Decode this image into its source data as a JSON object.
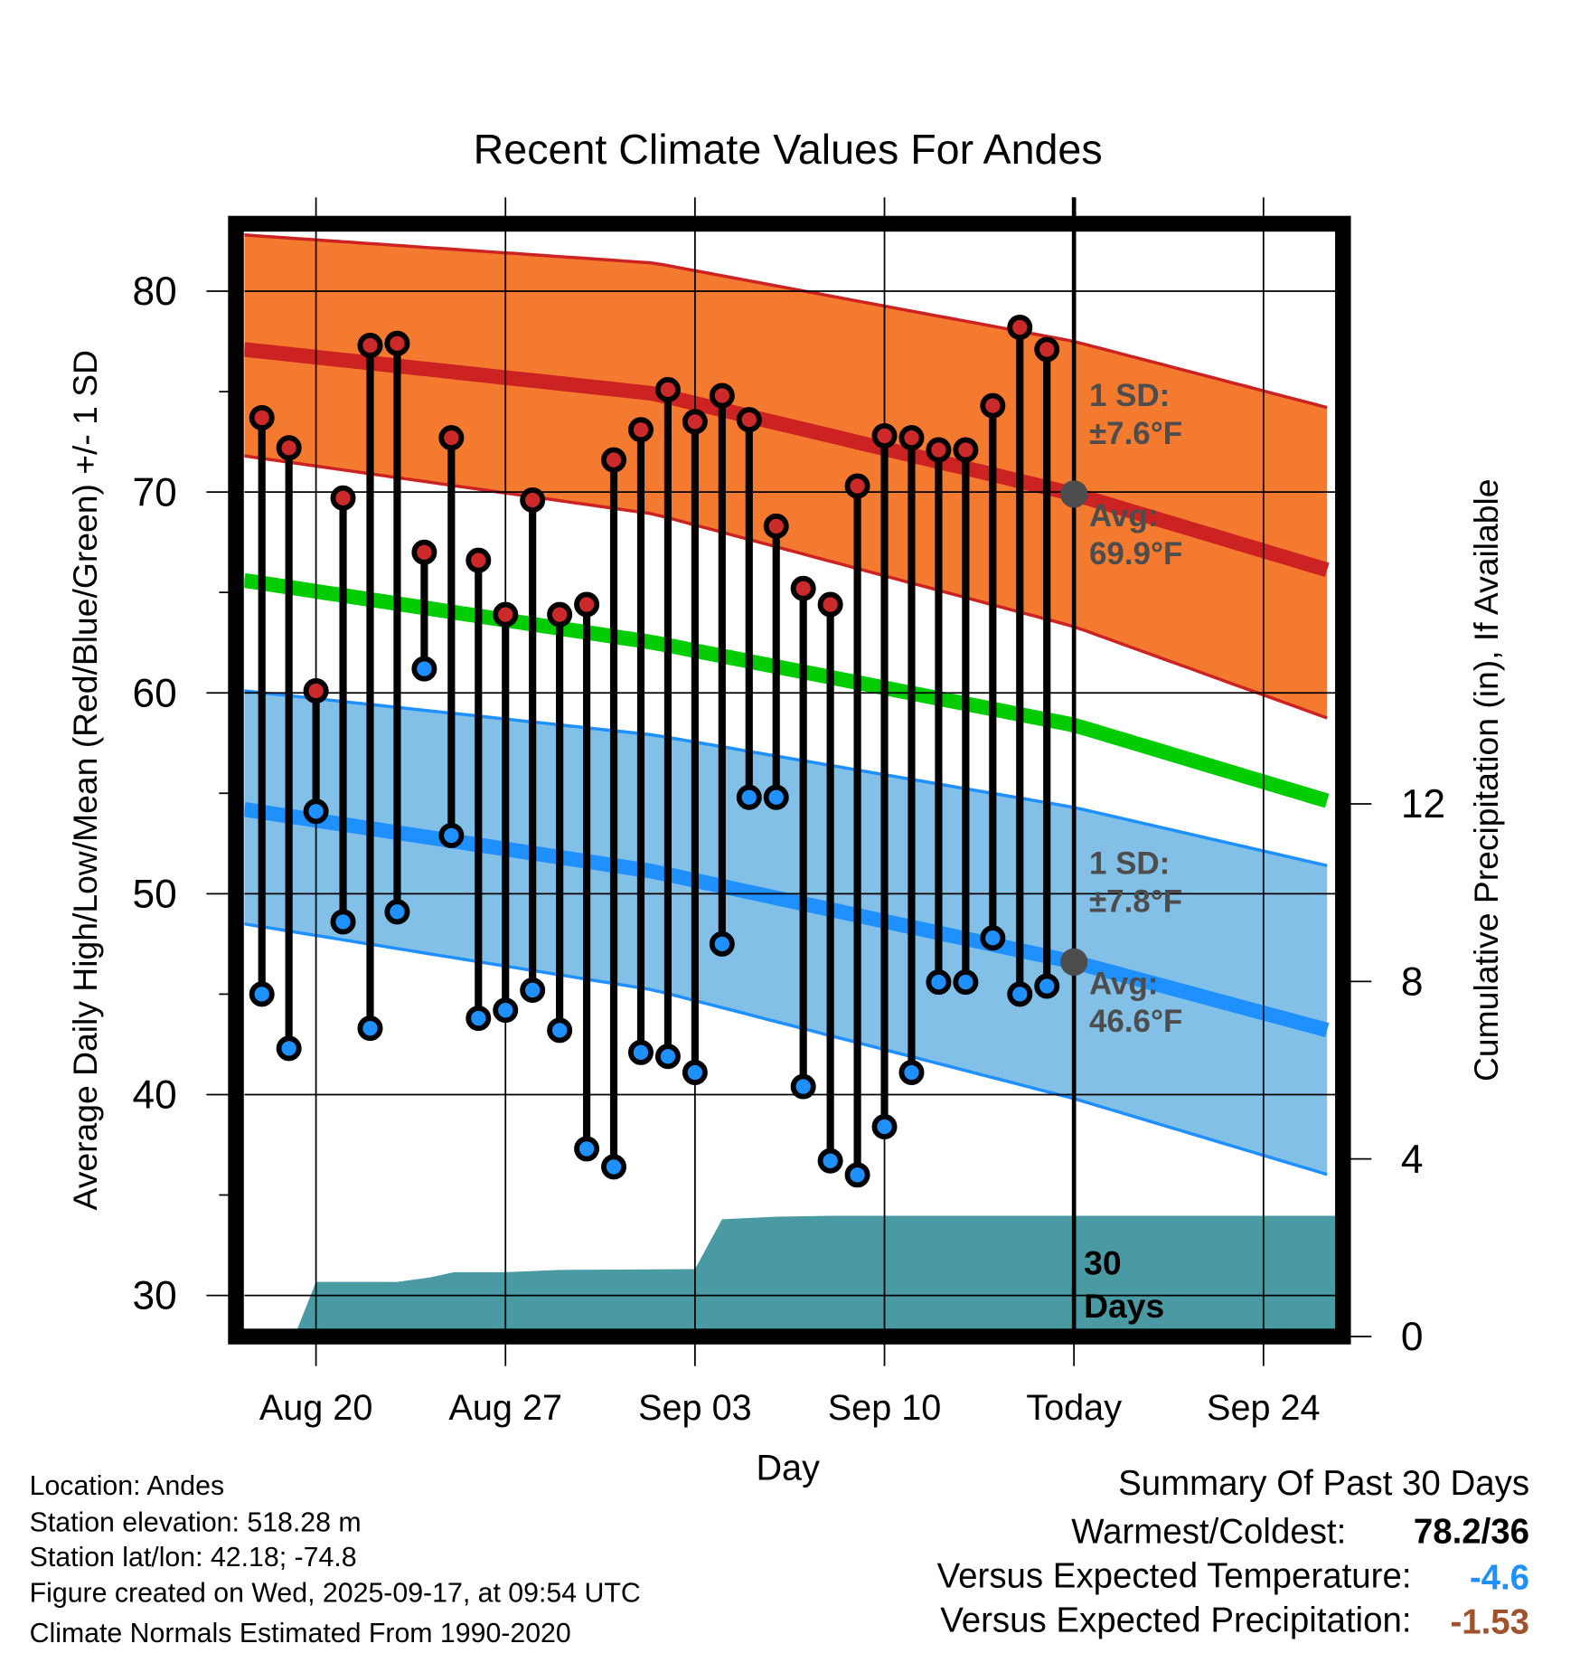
{
  "chart_data": {
    "type": "line",
    "title": "Recent Climate Values For Andes",
    "xlabel": "Day",
    "ylabel": "Average Daily High/Low/Mean (Red/Blue/Green) +/- 1 SD",
    "y2label": "Cumulative Precipitation (in), If Available",
    "ylim": [
      28.5,
      84
    ],
    "y2lim": [
      0,
      2.72
    ],
    "y_ticks": [
      "30",
      "40",
      "50",
      "60",
      "70",
      "80"
    ],
    "y2_ticks": [
      "0",
      "4",
      "8",
      "12"
    ],
    "x_ticks": [
      {
        "day": 0,
        "label": "Aug 20"
      },
      {
        "day": 7,
        "label": "Aug 27"
      },
      {
        "day": 14,
        "label": "Sep 03"
      },
      {
        "day": 21,
        "label": "Sep 10"
      },
      {
        "day": 28,
        "label": "Today"
      },
      {
        "day": 35,
        "label": "Sep 24"
      }
    ],
    "x_range_days_from_aug20": [
      -2.65,
      37.66
    ],
    "today_day": 28,
    "daily": {
      "first_day": -2,
      "high": [
        73.7,
        72.2,
        60.1,
        69.7,
        77.3,
        77.4,
        67.0,
        72.7,
        66.6,
        63.9,
        69.6,
        63.9,
        64.4,
        71.6,
        73.1,
        75.1,
        73.5,
        74.8,
        73.6,
        68.3,
        65.2,
        64.4,
        70.3,
        72.8,
        72.7,
        72.1,
        72.1,
        74.3,
        78.2,
        77.1
      ],
      "low": [
        45.0,
        42.3,
        54.1,
        48.6,
        43.3,
        49.1,
        61.2,
        52.9,
        43.8,
        44.2,
        45.2,
        43.2,
        37.3,
        36.4,
        42.1,
        41.9,
        41.1,
        47.5,
        54.8,
        54.8,
        40.4,
        36.7,
        36.0,
        38.4,
        41.1,
        45.6,
        45.6,
        47.8,
        45.0,
        45.4
      ]
    },
    "normals": {
      "days": [
        -2.65,
        12.5,
        28,
        37.66
      ],
      "high_avg": [
        77.1,
        74.9,
        69.9,
        66.0
      ],
      "high_upper": [
        82.8,
        81.4,
        77.5,
        74.1
      ],
      "high_lower": [
        71.8,
        68.9,
        63.3,
        58.6
      ],
      "mean_avg": [
        65.6,
        62.5,
        58.4,
        54.5
      ],
      "low_avg": [
        54.2,
        51.1,
        46.6,
        43.1
      ],
      "low_upper": [
        60.1,
        57.9,
        54.3,
        51.3
      ],
      "low_lower": [
        48.5,
        45.2,
        39.8,
        35.9
      ]
    },
    "precip": {
      "days": [
        -0.8,
        0,
        3,
        4.2,
        5.1,
        7,
        9,
        14,
        15,
        17,
        19,
        37.66
      ],
      "values": [
        0,
        1.23,
        1.23,
        1.33,
        1.45,
        1.45,
        1.5,
        1.52,
        2.64,
        2.7,
        2.72,
        2.72
      ]
    },
    "annotations": {
      "high_sd_1": "1 SD:",
      "high_sd_2": "±7.6°F",
      "high_avg_1": "Avg:",
      "high_avg_2": "69.9°F",
      "low_sd_1": "1 SD:",
      "low_sd_2": "±7.8°F",
      "low_avg_1": "Avg:",
      "low_avg_2": "46.6°F",
      "precip_1": "30",
      "precip_2": "Days"
    },
    "colors": {
      "high_band": "#f47a30",
      "high_line": "#cc2222",
      "mean_line": "#00cc00",
      "low_band": "#82c0e8",
      "low_line": "#1e90ff",
      "precip": "#4a9aa4",
      "high_dot": "#cc2a2a",
      "low_dot": "#1e90ff"
    }
  },
  "footer": {
    "location": "Location: Andes",
    "elevation": "Station elevation: 518.28 m",
    "latlon": "Station lat/lon: 42.18; -74.8",
    "created": "Figure created on Wed, 2025-09-17, at 09:54 UTC",
    "normals": "Climate Normals Estimated From 1990-2020"
  },
  "summary": {
    "title": "Summary Of Past 30 Days",
    "warmest_label": "Warmest/Coldest:",
    "warmest_value": "78.2/36",
    "temp_label": "Versus Expected Temperature:",
    "temp_value": "-4.6",
    "precip_label": "Versus Expected Precipitation:",
    "precip_value": "-1.53",
    "temp_color": "#1e90ff",
    "precip_color": "#a0522d"
  }
}
